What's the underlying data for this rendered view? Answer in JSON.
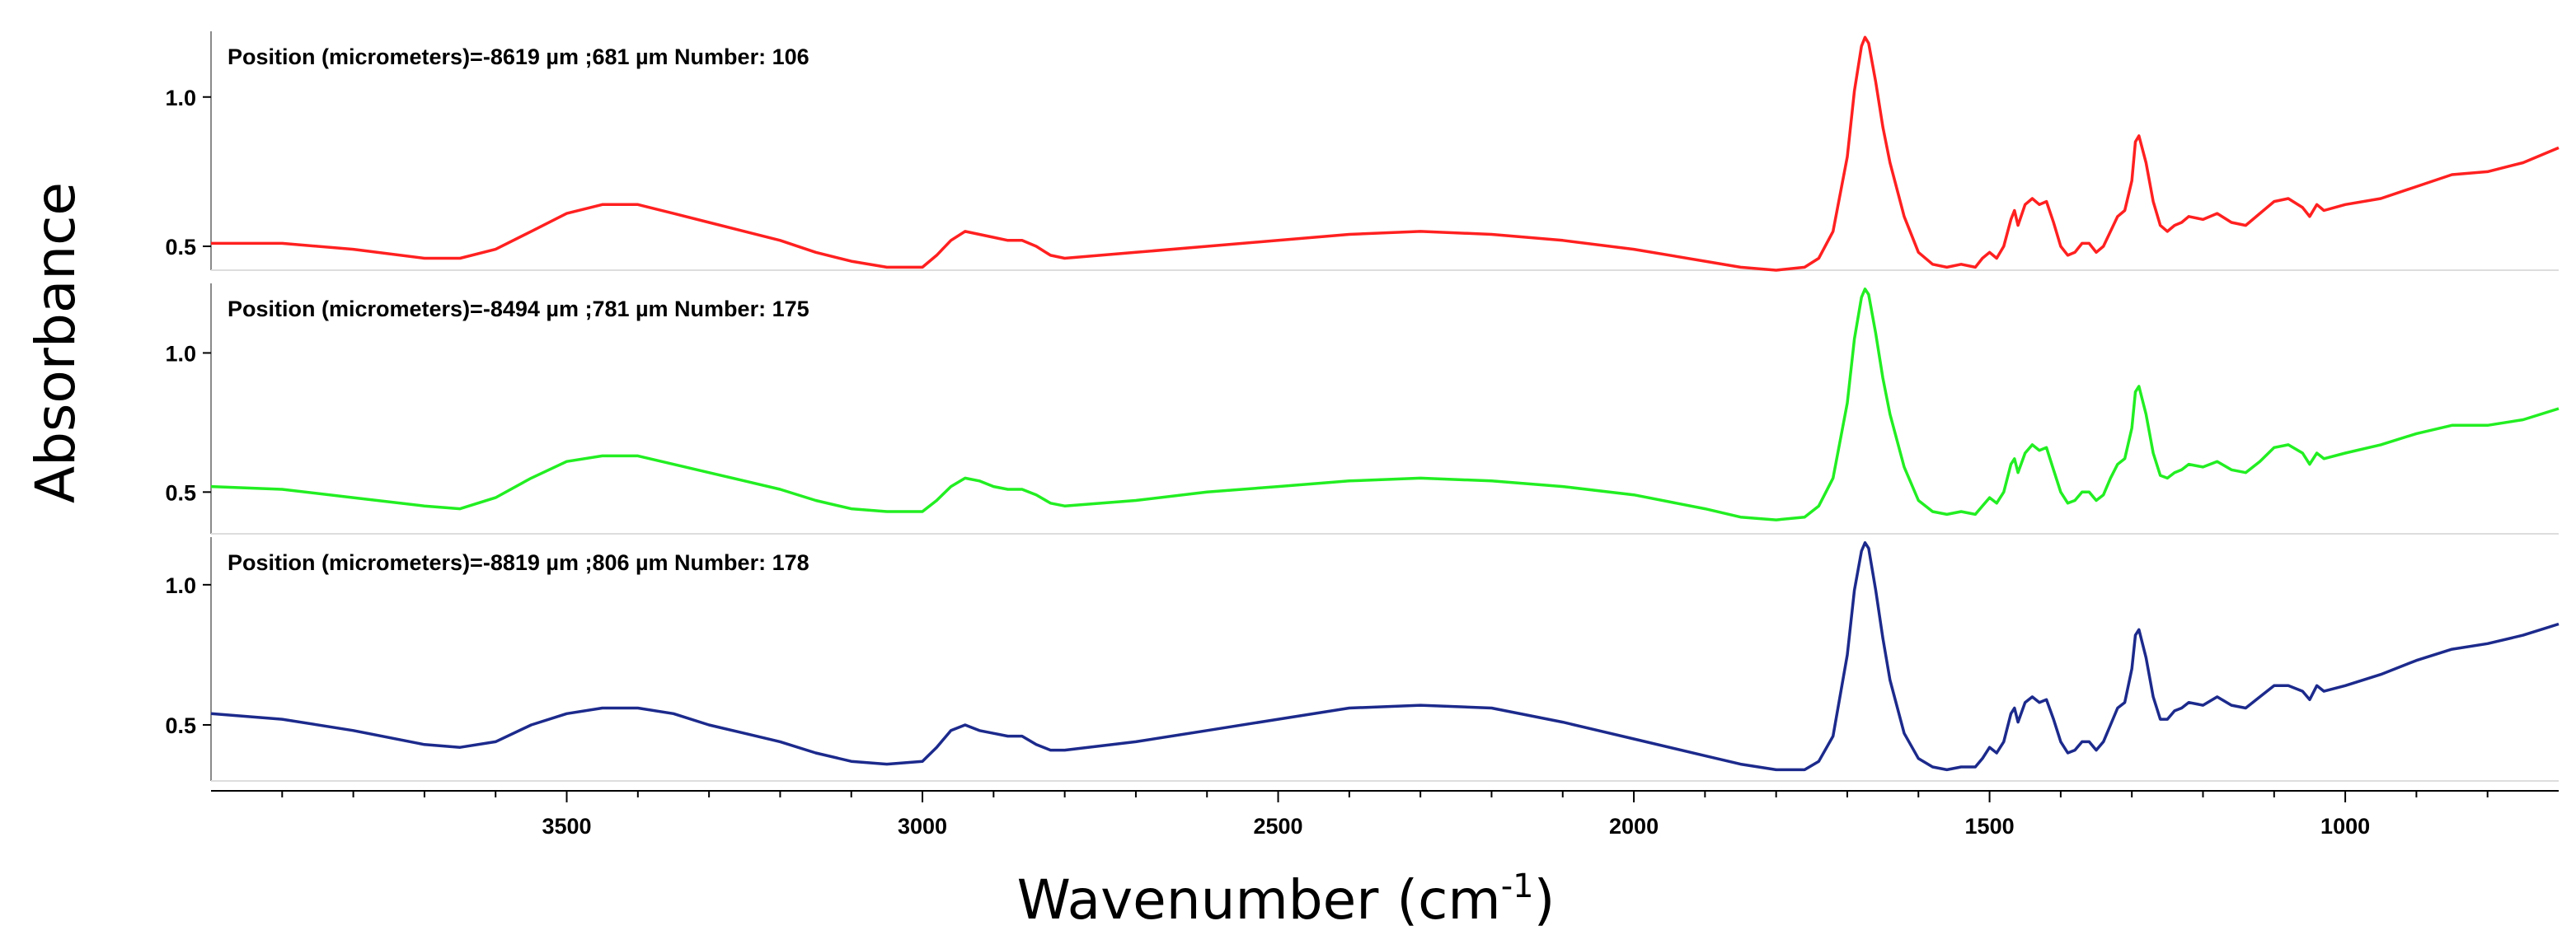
{
  "chart_data": {
    "type": "line",
    "ylabel": "Absorbance",
    "xlabel": "Wavenumber",
    "xlabel_unit": "(cm",
    "xlabel_unit_sup": "-1",
    "xlabel_unit_close": ")",
    "xlim": [
      4000,
      700
    ],
    "x_ticks": [
      3500,
      3000,
      2500,
      2000,
      1500,
      1000
    ],
    "x_tick_labels": [
      "3500",
      "3000",
      "2500",
      "2000",
      "1500",
      "1000"
    ],
    "grid": false,
    "panels": [
      {
        "label": "Position (micrometers)=-8619 µm ;681 µm  Number: 106",
        "color": "#ff2020",
        "ylim": [
          0.42,
          1.22
        ],
        "y_ticks": [
          0.5,
          1.0
        ],
        "y_tick_labels": [
          "0.5",
          "1.0"
        ],
        "x": [
          4000,
          3900,
          3800,
          3700,
          3650,
          3600,
          3550,
          3500,
          3450,
          3400,
          3350,
          3300,
          3250,
          3200,
          3150,
          3100,
          3050,
          3000,
          2980,
          2960,
          2940,
          2920,
          2900,
          2880,
          2860,
          2840,
          2820,
          2800,
          2700,
          2600,
          2500,
          2400,
          2300,
          2200,
          2100,
          2000,
          1900,
          1850,
          1800,
          1760,
          1740,
          1720,
          1700,
          1690,
          1680,
          1675,
          1670,
          1660,
          1650,
          1640,
          1620,
          1600,
          1580,
          1560,
          1540,
          1520,
          1510,
          1500,
          1490,
          1480,
          1470,
          1465,
          1460,
          1450,
          1440,
          1430,
          1420,
          1410,
          1400,
          1390,
          1380,
          1370,
          1360,
          1350,
          1340,
          1330,
          1320,
          1310,
          1300,
          1295,
          1290,
          1280,
          1270,
          1260,
          1250,
          1240,
          1230,
          1220,
          1200,
          1180,
          1160,
          1140,
          1120,
          1100,
          1080,
          1060,
          1050,
          1040,
          1030,
          1000,
          950,
          900,
          850,
          800,
          750,
          700
        ],
        "y": [
          0.51,
          0.51,
          0.49,
          0.46,
          0.46,
          0.49,
          0.55,
          0.61,
          0.64,
          0.64,
          0.61,
          0.58,
          0.55,
          0.52,
          0.48,
          0.45,
          0.43,
          0.43,
          0.47,
          0.52,
          0.55,
          0.54,
          0.53,
          0.52,
          0.52,
          0.5,
          0.47,
          0.46,
          0.48,
          0.5,
          0.52,
          0.54,
          0.55,
          0.54,
          0.52,
          0.49,
          0.45,
          0.43,
          0.42,
          0.43,
          0.46,
          0.55,
          0.8,
          1.02,
          1.17,
          1.2,
          1.18,
          1.05,
          0.9,
          0.78,
          0.6,
          0.48,
          0.44,
          0.43,
          0.44,
          0.43,
          0.46,
          0.48,
          0.46,
          0.5,
          0.59,
          0.62,
          0.57,
          0.64,
          0.66,
          0.64,
          0.65,
          0.58,
          0.5,
          0.47,
          0.48,
          0.51,
          0.51,
          0.48,
          0.5,
          0.55,
          0.6,
          0.62,
          0.72,
          0.85,
          0.87,
          0.78,
          0.65,
          0.57,
          0.55,
          0.57,
          0.58,
          0.6,
          0.59,
          0.61,
          0.58,
          0.57,
          0.61,
          0.65,
          0.66,
          0.63,
          0.6,
          0.64,
          0.62,
          0.64,
          0.66,
          0.7,
          0.74,
          0.75,
          0.78,
          0.83
        ]
      },
      {
        "label": "Position (micrometers)=-8494 µm ;781 µm  Number: 175",
        "color": "#22ee22",
        "ylim": [
          0.35,
          1.25
        ],
        "y_ticks": [
          0.5,
          1.0
        ],
        "y_tick_labels": [
          "0.5",
          "1.0"
        ],
        "x": [
          4000,
          3900,
          3800,
          3700,
          3650,
          3600,
          3550,
          3500,
          3450,
          3400,
          3350,
          3300,
          3250,
          3200,
          3150,
          3100,
          3050,
          3000,
          2980,
          2960,
          2940,
          2920,
          2900,
          2880,
          2860,
          2840,
          2820,
          2800,
          2700,
          2600,
          2500,
          2400,
          2300,
          2200,
          2100,
          2000,
          1900,
          1850,
          1800,
          1760,
          1740,
          1720,
          1700,
          1690,
          1680,
          1675,
          1670,
          1660,
          1650,
          1640,
          1620,
          1600,
          1580,
          1560,
          1540,
          1520,
          1510,
          1500,
          1490,
          1480,
          1470,
          1465,
          1460,
          1450,
          1440,
          1430,
          1420,
          1410,
          1400,
          1390,
          1380,
          1370,
          1360,
          1350,
          1340,
          1330,
          1320,
          1310,
          1300,
          1295,
          1290,
          1280,
          1270,
          1260,
          1250,
          1240,
          1230,
          1220,
          1200,
          1180,
          1160,
          1140,
          1120,
          1100,
          1080,
          1060,
          1050,
          1040,
          1030,
          1000,
          950,
          900,
          850,
          800,
          750,
          700
        ],
        "y": [
          0.52,
          0.51,
          0.48,
          0.45,
          0.44,
          0.48,
          0.55,
          0.61,
          0.63,
          0.63,
          0.6,
          0.57,
          0.54,
          0.51,
          0.47,
          0.44,
          0.43,
          0.43,
          0.47,
          0.52,
          0.55,
          0.54,
          0.52,
          0.51,
          0.51,
          0.49,
          0.46,
          0.45,
          0.47,
          0.5,
          0.52,
          0.54,
          0.55,
          0.54,
          0.52,
          0.49,
          0.44,
          0.41,
          0.4,
          0.41,
          0.45,
          0.55,
          0.82,
          1.05,
          1.2,
          1.23,
          1.21,
          1.07,
          0.91,
          0.78,
          0.59,
          0.47,
          0.43,
          0.42,
          0.43,
          0.42,
          0.45,
          0.48,
          0.46,
          0.5,
          0.6,
          0.62,
          0.57,
          0.64,
          0.67,
          0.65,
          0.66,
          0.58,
          0.5,
          0.46,
          0.47,
          0.5,
          0.5,
          0.47,
          0.49,
          0.55,
          0.6,
          0.62,
          0.73,
          0.86,
          0.88,
          0.78,
          0.64,
          0.56,
          0.55,
          0.57,
          0.58,
          0.6,
          0.59,
          0.61,
          0.58,
          0.57,
          0.61,
          0.66,
          0.67,
          0.64,
          0.6,
          0.64,
          0.62,
          0.64,
          0.67,
          0.71,
          0.74,
          0.74,
          0.76,
          0.8
        ]
      },
      {
        "label": "Position (micrometers)=-8819 µm ;806 µm  Number: 178",
        "color": "#1c2a8c",
        "ylim": [
          0.3,
          1.17
        ],
        "y_ticks": [
          0.5,
          1.0
        ],
        "y_tick_labels": [
          "0.5",
          "1.0"
        ],
        "x": [
          4000,
          3900,
          3800,
          3700,
          3650,
          3600,
          3550,
          3500,
          3450,
          3400,
          3350,
          3300,
          3250,
          3200,
          3150,
          3100,
          3050,
          3000,
          2980,
          2960,
          2940,
          2920,
          2900,
          2880,
          2860,
          2840,
          2820,
          2800,
          2700,
          2600,
          2500,
          2400,
          2300,
          2200,
          2100,
          2000,
          1900,
          1850,
          1800,
          1760,
          1740,
          1720,
          1700,
          1690,
          1680,
          1675,
          1670,
          1660,
          1650,
          1640,
          1620,
          1600,
          1580,
          1560,
          1540,
          1520,
          1510,
          1500,
          1490,
          1480,
          1470,
          1465,
          1460,
          1450,
          1440,
          1430,
          1420,
          1410,
          1400,
          1390,
          1380,
          1370,
          1360,
          1350,
          1340,
          1330,
          1320,
          1310,
          1300,
          1295,
          1290,
          1280,
          1270,
          1260,
          1250,
          1240,
          1230,
          1220,
          1200,
          1180,
          1160,
          1140,
          1120,
          1100,
          1080,
          1060,
          1050,
          1040,
          1030,
          1000,
          950,
          900,
          850,
          800,
          750,
          700
        ],
        "y": [
          0.54,
          0.52,
          0.48,
          0.43,
          0.42,
          0.44,
          0.5,
          0.54,
          0.56,
          0.56,
          0.54,
          0.5,
          0.47,
          0.44,
          0.4,
          0.37,
          0.36,
          0.37,
          0.42,
          0.48,
          0.5,
          0.48,
          0.47,
          0.46,
          0.46,
          0.43,
          0.41,
          0.41,
          0.44,
          0.48,
          0.52,
          0.56,
          0.57,
          0.56,
          0.51,
          0.45,
          0.39,
          0.36,
          0.34,
          0.34,
          0.37,
          0.46,
          0.75,
          0.98,
          1.12,
          1.15,
          1.13,
          0.98,
          0.81,
          0.66,
          0.47,
          0.38,
          0.35,
          0.34,
          0.35,
          0.35,
          0.38,
          0.42,
          0.4,
          0.44,
          0.54,
          0.56,
          0.51,
          0.58,
          0.6,
          0.58,
          0.59,
          0.52,
          0.44,
          0.4,
          0.41,
          0.44,
          0.44,
          0.41,
          0.44,
          0.5,
          0.56,
          0.58,
          0.7,
          0.82,
          0.84,
          0.74,
          0.6,
          0.52,
          0.52,
          0.55,
          0.56,
          0.58,
          0.57,
          0.6,
          0.57,
          0.56,
          0.6,
          0.64,
          0.64,
          0.62,
          0.59,
          0.64,
          0.62,
          0.64,
          0.68,
          0.73,
          0.77,
          0.79,
          0.82,
          0.86
        ]
      }
    ]
  }
}
